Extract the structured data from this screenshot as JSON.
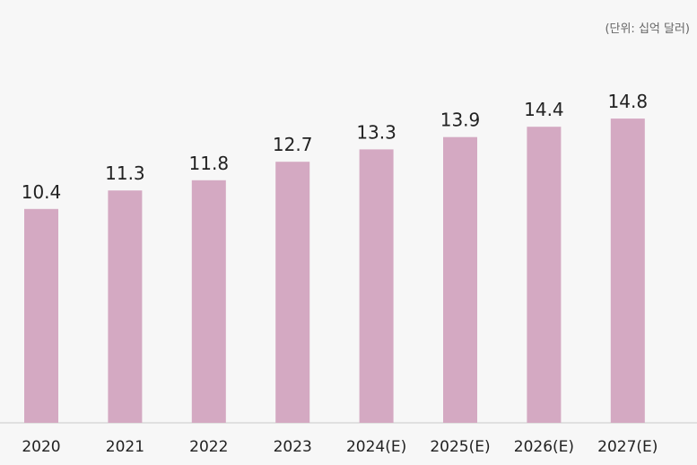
{
  "chart_data": {
    "type": "bar",
    "unit_label": "(단위: 십억 달러)",
    "categories": [
      "2020",
      "2021",
      "2022",
      "2023",
      "2024(E)",
      "2025(E)",
      "2026(E)",
      "2027(E)"
    ],
    "values": [
      10.4,
      11.3,
      11.8,
      12.7,
      13.3,
      13.9,
      14.4,
      14.8
    ],
    "value_labels": [
      "10.4",
      "11.3",
      "11.8",
      "12.7",
      "13.3",
      "13.9",
      "14.4",
      "14.8"
    ],
    "bar_color": "#d4a9c2",
    "axis_color": "#c9c9c9",
    "grid": false
  }
}
